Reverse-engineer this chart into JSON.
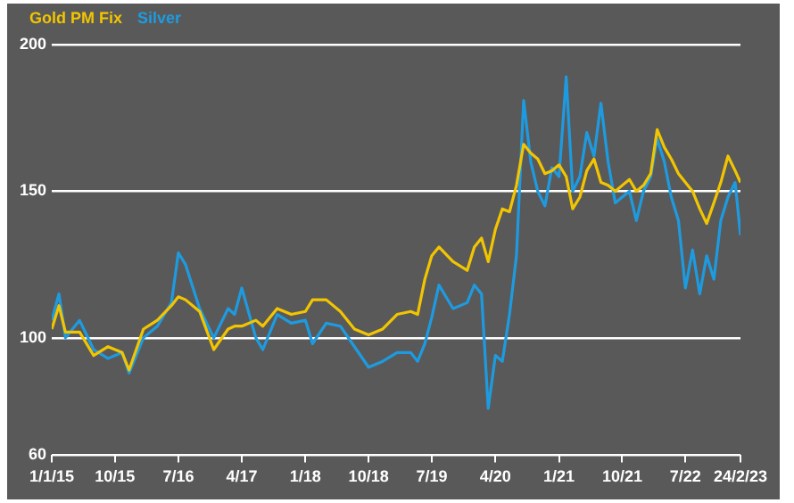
{
  "chart_data": {
    "type": "line",
    "x": [
      "2015-01-01",
      "2015-02",
      "2015-03",
      "2015-05",
      "2015-07",
      "2015-09",
      "2015-11",
      "2015-12",
      "2016-02",
      "2016-04",
      "2016-06",
      "2016-07",
      "2016-08",
      "2016-10",
      "2016-12",
      "2017-02",
      "2017-03",
      "2017-04",
      "2017-06",
      "2017-07",
      "2017-09",
      "2017-11",
      "2018-01",
      "2018-02",
      "2018-04",
      "2018-06",
      "2018-08",
      "2018-10",
      "2018-12",
      "2019-02",
      "2019-04",
      "2019-05",
      "2019-06",
      "2019-07",
      "2019-08",
      "2019-10",
      "2019-12",
      "2020-01",
      "2020-02",
      "2020-03",
      "2020-04",
      "2020-05",
      "2020-06",
      "2020-07",
      "2020-08",
      "2020-09",
      "2020-10",
      "2020-11",
      "2020-12",
      "2021-01",
      "2021-02",
      "2021-03",
      "2021-04",
      "2021-05",
      "2021-06",
      "2021-07",
      "2021-08",
      "2021-09",
      "2021-10",
      "2021-11",
      "2021-12",
      "2022-01",
      "2022-02",
      "2022-03",
      "2022-04",
      "2022-05",
      "2022-06",
      "2022-07",
      "2022-08",
      "2022-09",
      "2022-10",
      "2022-11",
      "2022-12",
      "2023-01",
      "2023-02",
      "2023-02-24"
    ],
    "series": [
      {
        "name": "Gold PM Fix",
        "color": "#f2c500",
        "values": [
          103,
          111,
          102,
          102,
          94,
          97,
          95,
          89,
          103,
          106,
          111,
          114,
          113,
          109,
          96,
          103,
          104,
          104,
          106,
          104,
          110,
          108,
          109,
          113,
          113,
          109,
          103,
          101,
          103,
          108,
          109,
          108,
          120,
          128,
          131,
          126,
          123,
          131,
          134,
          126,
          137,
          144,
          143,
          152,
          166,
          163,
          161,
          156,
          157,
          159,
          155,
          144,
          148,
          157,
          161,
          153,
          152,
          150,
          152,
          154,
          150,
          152,
          156,
          171,
          165,
          161,
          156,
          153,
          150,
          144,
          139,
          146,
          153,
          162,
          157,
          153
        ]
      },
      {
        "name": "Silver",
        "color": "#1e9be0",
        "values": [
          106,
          115,
          100,
          106,
          96,
          93,
          95,
          88,
          100,
          104,
          112,
          129,
          125,
          110,
          100,
          110,
          108,
          117,
          100,
          96,
          108,
          105,
          106,
          98,
          105,
          104,
          97,
          90,
          92,
          95,
          95,
          92,
          98,
          107,
          118,
          110,
          112,
          118,
          115,
          76,
          94,
          92,
          108,
          128,
          181,
          160,
          150,
          145,
          158,
          155,
          189,
          150,
          155,
          170,
          162,
          180,
          160,
          146,
          148,
          150,
          140,
          150,
          155,
          168,
          160,
          148,
          140,
          117,
          130,
          115,
          128,
          120,
          140,
          148,
          153,
          135
        ]
      }
    ],
    "xlim": [
      "2015-01-01",
      "2023-02-24"
    ],
    "xticks": [
      {
        "value": "2015-01-01",
        "label": "1/1/15"
      },
      {
        "value": "2015-10-01",
        "label": "10/15"
      },
      {
        "value": "2016-07-01",
        "label": "7/16"
      },
      {
        "value": "2017-04-01",
        "label": "4/17"
      },
      {
        "value": "2018-01-01",
        "label": "1/18"
      },
      {
        "value": "2018-10-01",
        "label": "10/18"
      },
      {
        "value": "2019-07-01",
        "label": "7/19"
      },
      {
        "value": "2020-04-01",
        "label": "4/20"
      },
      {
        "value": "2021-01-01",
        "label": "1/21"
      },
      {
        "value": "2021-10-01",
        "label": "10/21"
      },
      {
        "value": "2022-07-01",
        "label": "7/22"
      },
      {
        "value": "2023-02-24",
        "label": "24/2/23"
      }
    ],
    "ylim": [
      60,
      200
    ],
    "yticks": [
      60,
      100,
      150,
      200
    ],
    "grid": "y",
    "legend": "top left",
    "marker": "none",
    "line_style": "solid"
  }
}
